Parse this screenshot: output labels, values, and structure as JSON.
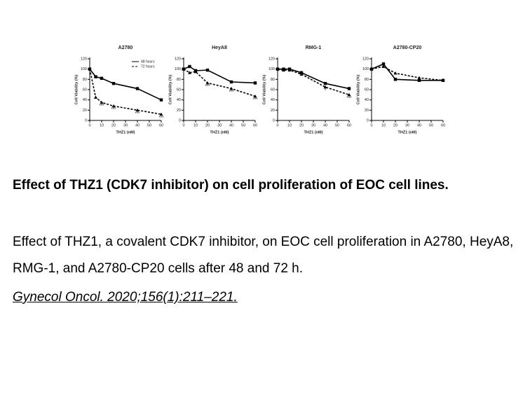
{
  "chart_data": [
    {
      "type": "line",
      "title": "A2780",
      "xlabel": "THZ1 (nM)",
      "ylabel": "Cell Viability (%)",
      "x": [
        0,
        5,
        10,
        20,
        40,
        60
      ],
      "series": [
        {
          "name": "48 hours",
          "color": "#000000",
          "values": [
            100,
            85,
            82,
            72,
            62,
            40
          ]
        },
        {
          "name": "72 hours",
          "color": "#000000",
          "values": [
            100,
            45,
            35,
            28,
            20,
            12
          ]
        }
      ],
      "annotations": [
        {
          "text": "***",
          "x": 10,
          "y": 28
        },
        {
          "text": "***",
          "x": 20,
          "y": 21
        },
        {
          "text": "***",
          "x": 40,
          "y": 13
        },
        {
          "text": "***",
          "x": 60,
          "y": 5
        }
      ],
      "xlim": [
        0,
        60
      ],
      "xticks": [
        0,
        10,
        20,
        30,
        40,
        50,
        60
      ],
      "ylim": [
        0,
        120
      ],
      "yticks": [
        0,
        20,
        40,
        60,
        80,
        100,
        120
      ]
    },
    {
      "type": "line",
      "title": "HeyA8",
      "xlabel": "THZ1 (nM)",
      "ylabel": "Cell Viability (%)",
      "x": [
        0,
        5,
        10,
        20,
        40,
        60
      ],
      "series": [
        {
          "color": "#000000",
          "values": [
            100,
            105,
            97,
            98,
            75,
            73
          ]
        },
        {
          "color": "#000000",
          "values": [
            100,
            93,
            95,
            73,
            62,
            47
          ]
        }
      ],
      "annotations": [
        {
          "text": "***",
          "x": 20,
          "y": 66
        },
        {
          "text": "***",
          "x": 40,
          "y": 55
        },
        {
          "text": "***",
          "x": 60,
          "y": 40
        }
      ],
      "xlim": [
        0,
        60
      ],
      "xticks": [
        0,
        10,
        20,
        30,
        40,
        50,
        60
      ],
      "ylim": [
        0,
        120
      ],
      "yticks": [
        0,
        20,
        40,
        60,
        80,
        100,
        120
      ]
    },
    {
      "type": "line",
      "title": "RMG-1",
      "xlabel": "THZ1 (nM)",
      "ylabel": "Cell Viability (%)",
      "x": [
        0,
        5,
        10,
        20,
        40,
        60
      ],
      "series": [
        {
          "color": "#000000",
          "values": [
            100,
            100,
            100,
            93,
            72,
            62
          ]
        },
        {
          "color": "#000000",
          "values": [
            100,
            98,
            98,
            90,
            65,
            50
          ]
        }
      ],
      "annotations": [
        {
          "text": "*",
          "x": 40,
          "y": 58
        },
        {
          "text": "***",
          "x": 60,
          "y": 43
        }
      ],
      "xlim": [
        0,
        60
      ],
      "xticks": [
        0,
        10,
        20,
        30,
        40,
        50,
        60
      ],
      "ylim": [
        0,
        120
      ],
      "yticks": [
        0,
        20,
        40,
        60,
        80,
        100,
        120
      ]
    },
    {
      "type": "line",
      "title": "A2780-CP20",
      "xlabel": "THZ1 (nM)",
      "ylabel": "Cell Viability (%)",
      "x": [
        0,
        10,
        20,
        40,
        60
      ],
      "series": [
        {
          "color": "#000000",
          "values": [
            100,
            110,
            80,
            78,
            78
          ]
        },
        {
          "color": "#000000",
          "values": [
            100,
            105,
            92,
            83,
            78
          ]
        }
      ],
      "xlim": [
        0,
        60
      ],
      "xticks": [
        0,
        10,
        20,
        30,
        40,
        50,
        60
      ],
      "ylim": [
        0,
        120
      ],
      "yticks": [
        0,
        20,
        40,
        60,
        80,
        100,
        120
      ]
    }
  ],
  "caption": {
    "title": "Effect of THZ1 (CDK7 inhibitor) on cell proliferation of EOC cell lines.",
    "body": "Effect of THZ1, a covalent CDK7 inhibitor, on EOC cell proliferation in A2780, HeyA8, RMG-1, and A2780-CP20 cells after 48 and 72 h.",
    "citation": "Gynecol Oncol. 2020;156(1):211–221. "
  }
}
